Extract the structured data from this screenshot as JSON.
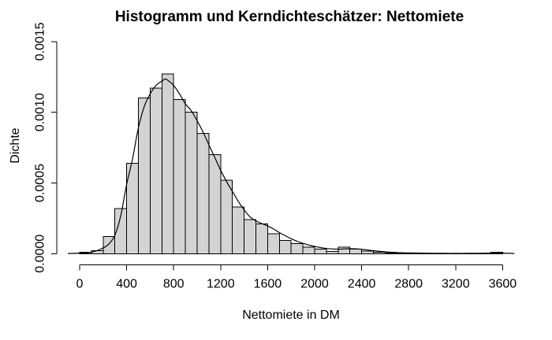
{
  "chart_data": {
    "type": "bar",
    "subtype": "histogram-with-density",
    "title": "Histogramm und Kerndichteschätzer: Nettomiete",
    "xlabel": "Nettomiete in DM",
    "ylabel": "Dichte",
    "xlim": [
      0,
      3600
    ],
    "ylim": [
      0,
      0.0015
    ],
    "grid": "off",
    "legend": "none",
    "x_ticks": [
      0,
      400,
      800,
      1200,
      1600,
      2000,
      2400,
      2800,
      3200,
      3600
    ],
    "y_tick_values": [
      0,
      0.0005,
      0.001,
      0.0015
    ],
    "y_tick_labels": [
      "0.0000",
      "0.0005",
      "0.0010",
      "0.0015"
    ],
    "bins": {
      "start": 0,
      "width": 100,
      "densities": [
        1e-05,
        2.2e-05,
        0.00012,
        0.00032,
        0.00064,
        0.0011,
        0.00117,
        0.00127,
        0.00109,
        0.001,
        0.00085,
        0.0007,
        0.00052,
        0.00033,
        0.00024,
        0.00021,
        0.00014,
        9.3e-05,
        7e-05,
        4.5e-05,
        3.3e-05,
        1.5e-05,
        4.6e-05,
        3.3e-05,
        1.9e-05,
        1e-05,
        5e-06,
        3e-06,
        3e-06,
        2e-06,
        2e-06,
        1e-06,
        1e-06,
        1e-06,
        1e-06,
        1e-05
      ]
    },
    "density_curve": {
      "x": [
        -100,
        0,
        100,
        200,
        250,
        300,
        350,
        400,
        450,
        500,
        550,
        600,
        650,
        700,
        730,
        760,
        800,
        850,
        900,
        950,
        1000,
        1050,
        1100,
        1150,
        1200,
        1250,
        1300,
        1350,
        1400,
        1450,
        1500,
        1550,
        1600,
        1650,
        1700,
        1750,
        1800,
        1850,
        1900,
        1950,
        2000,
        2100,
        2200,
        2300,
        2400,
        2500,
        2600,
        2700,
        2800,
        2900,
        3000,
        3100,
        3200,
        3300,
        3400,
        3500,
        3600,
        3700
      ],
      "y": [
        1e-06,
        4e-06,
        1e-05,
        4e-05,
        7e-05,
        0.00013,
        0.00027,
        0.00049,
        0.00067,
        0.00089,
        0.00104,
        0.00113,
        0.00119,
        0.00122,
        0.001235,
        0.00122,
        0.00119,
        0.00113,
        0.00106,
        0.00101,
        0.00094,
        0.00086,
        0.00077,
        0.00068,
        0.00059,
        0.00051,
        0.00044,
        0.00037,
        0.00031,
        0.00026,
        0.000232,
        0.000213,
        0.000196,
        0.000174,
        0.000149,
        0.000127,
        0.000106,
        8.8e-05,
        7.3e-05,
        6.1e-05,
        5.1e-05,
        3.7e-05,
        3.2e-05,
        3.5e-05,
        3.1e-05,
        2.1e-05,
        1.3e-05,
        8e-06,
        5e-06,
        4e-06,
        3e-06,
        2e-06,
        2e-06,
        2e-06,
        3e-06,
        4e-06,
        4e-06,
        1e-06
      ]
    },
    "colors": {
      "bar_fill": "#d3d3d3",
      "stroke": "#000000",
      "background": "#ffffff"
    }
  }
}
